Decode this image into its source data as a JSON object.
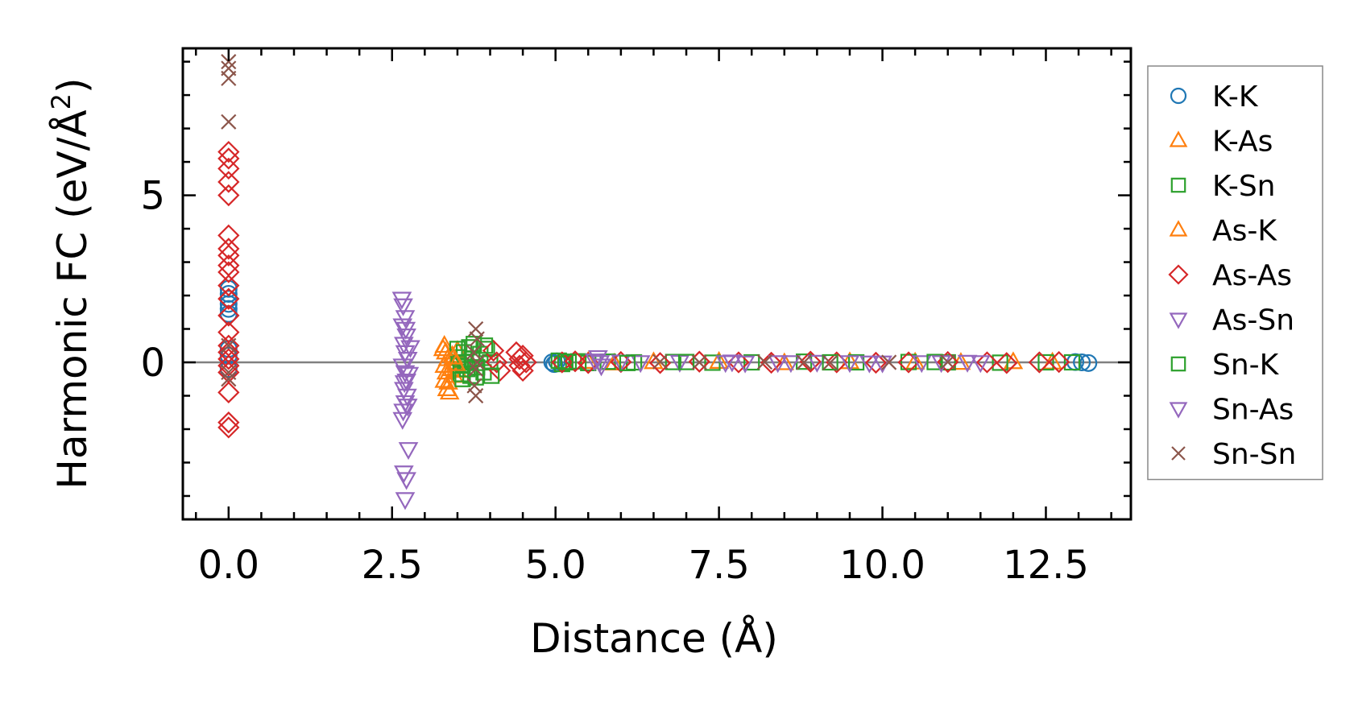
{
  "chart_data": {
    "type": "scatter",
    "title": "",
    "xlabel": "Distance (Å)",
    "ylabel_main": "Harmonic FC (eV/Å",
    "ylabel_sup": "2",
    "ylabel_close": ")",
    "xlim": [
      -0.7,
      13.8
    ],
    "ylim": [
      -4.7,
      9.4
    ],
    "xticks_major": [
      0.0,
      2.5,
      5.0,
      7.5,
      10.0,
      12.5
    ],
    "xtick_labels": [
      "0.0",
      "2.5",
      "5.0",
      "7.5",
      "10.0",
      "12.5"
    ],
    "yticks_major": [
      0,
      5
    ],
    "ytick_labels": [
      "0",
      "5"
    ],
    "zero_line": true,
    "grid": false,
    "legend_position": "outside-right",
    "series": [
      {
        "name": "K-K",
        "marker": "circle",
        "color": "#1f77b4",
        "points": [
          [
            0,
            2.2
          ],
          [
            0,
            2.05
          ],
          [
            0,
            1.9
          ],
          [
            0,
            1.75
          ],
          [
            0,
            1.6
          ],
          [
            0,
            1.45
          ],
          [
            0,
            0.4
          ],
          [
            0,
            0.2
          ],
          [
            0,
            -0.2
          ],
          [
            13.05,
            0.0
          ],
          [
            13.15,
            -0.02
          ],
          [
            12.95,
            0.01
          ],
          [
            4.95,
            0.0
          ],
          [
            4.98,
            -0.05
          ],
          [
            5.02,
            0.03
          ]
        ]
      },
      {
        "name": "K-As",
        "marker": "triangle-up",
        "color": "#ff7f0e",
        "points": [
          [
            3.3,
            0.5
          ],
          [
            3.32,
            0.3
          ],
          [
            3.35,
            0.1
          ],
          [
            3.3,
            -0.1
          ],
          [
            3.33,
            -0.3
          ],
          [
            3.3,
            -0.55
          ],
          [
            3.34,
            -0.8
          ],
          [
            3.38,
            -0.9
          ],
          [
            3.4,
            -0.2
          ],
          [
            3.42,
            0.2
          ],
          [
            3.45,
            0.0
          ],
          [
            3.45,
            -0.4
          ],
          [
            3.5,
            0.35
          ],
          [
            3.5,
            -0.25
          ],
          [
            5.5,
            0.02
          ],
          [
            5.9,
            -0.03
          ],
          [
            6.5,
            0.01
          ],
          [
            7.5,
            0.02
          ],
          [
            8.5,
            -0.02
          ],
          [
            9.5,
            0.01
          ],
          [
            10.5,
            0.0
          ],
          [
            11.2,
            -0.01
          ],
          [
            12.0,
            0.01
          ],
          [
            12.6,
            0.0
          ]
        ]
      },
      {
        "name": "K-Sn",
        "marker": "square",
        "color": "#2ca02c",
        "points": [
          [
            3.5,
            0.4
          ],
          [
            3.52,
            0.15
          ],
          [
            3.55,
            -0.1
          ],
          [
            3.55,
            -0.35
          ],
          [
            3.6,
            0.3
          ],
          [
            3.62,
            0.0
          ],
          [
            3.65,
            -0.2
          ],
          [
            3.68,
            0.45
          ],
          [
            3.7,
            -0.4
          ],
          [
            3.72,
            0.1
          ],
          [
            3.75,
            0.55
          ],
          [
            3.8,
            -0.15
          ],
          [
            3.85,
            0.25
          ],
          [
            3.9,
            -0.3
          ],
          [
            3.95,
            0.4
          ],
          [
            4.0,
            0.0
          ],
          [
            5.05,
            0.05
          ],
          [
            5.1,
            -0.05
          ],
          [
            5.2,
            0.0
          ],
          [
            5.35,
            0.03
          ],
          [
            5.5,
            -0.02
          ],
          [
            5.8,
            0.02
          ],
          [
            6.2,
            0.0
          ],
          [
            6.8,
            0.01
          ],
          [
            7.4,
            -0.01
          ],
          [
            8.0,
            0.0
          ],
          [
            8.8,
            0.02
          ],
          [
            9.6,
            0.0
          ],
          [
            10.4,
            0.01
          ],
          [
            11.0,
            0.0
          ],
          [
            11.8,
            -0.01
          ],
          [
            12.5,
            0.0
          ],
          [
            12.9,
            0.0
          ]
        ]
      },
      {
        "name": "As-K",
        "marker": "triangle-up",
        "color": "#ff7f0e",
        "points": [
          [
            3.28,
            0.4
          ],
          [
            3.36,
            -0.6
          ],
          [
            3.44,
            0.15
          ],
          [
            3.48,
            -0.05
          ]
        ]
      },
      {
        "name": "As-As",
        "marker": "diamond",
        "color": "#d62728",
        "points": [
          [
            0,
            6.3
          ],
          [
            0,
            6.1
          ],
          [
            0,
            5.8
          ],
          [
            0,
            5.4
          ],
          [
            0,
            5.0
          ],
          [
            0,
            3.8
          ],
          [
            0,
            3.4
          ],
          [
            0,
            3.2
          ],
          [
            0,
            2.9
          ],
          [
            0,
            2.7
          ],
          [
            0,
            2.3
          ],
          [
            0,
            1.9
          ],
          [
            0,
            1.4
          ],
          [
            0,
            0.9
          ],
          [
            0,
            0.5
          ],
          [
            0,
            0.3
          ],
          [
            0,
            0.1
          ],
          [
            0,
            -0.1
          ],
          [
            0,
            -0.3
          ],
          [
            0,
            -0.9
          ],
          [
            0,
            -1.8
          ],
          [
            0,
            -1.95
          ],
          [
            4.05,
            0.35
          ],
          [
            4.1,
            0.0
          ],
          [
            4.15,
            -0.25
          ],
          [
            4.4,
            0.3
          ],
          [
            4.45,
            0.1
          ],
          [
            4.45,
            -0.1
          ],
          [
            4.5,
            -0.25
          ],
          [
            4.5,
            0.2
          ],
          [
            4.55,
            0.0
          ],
          [
            5.1,
            0.0
          ],
          [
            5.3,
            0.03
          ],
          [
            5.5,
            -0.02
          ],
          [
            6.0,
            0.01
          ],
          [
            6.6,
            -0.02
          ],
          [
            7.2,
            0.02
          ],
          [
            7.8,
            0.0
          ],
          [
            8.3,
            -0.01
          ],
          [
            8.9,
            0.02
          ],
          [
            9.3,
            0.0
          ],
          [
            9.9,
            -0.01
          ],
          [
            10.4,
            0.0
          ],
          [
            11.0,
            0.01
          ],
          [
            11.6,
            0.0
          ],
          [
            11.9,
            -0.02
          ],
          [
            12.4,
            0.0
          ],
          [
            12.7,
            0.01
          ]
        ]
      },
      {
        "name": "As-Sn",
        "marker": "triangle-down",
        "color": "#9467bd",
        "points": [
          [
            2.65,
            1.9
          ],
          [
            2.67,
            1.7
          ],
          [
            2.7,
            1.35
          ],
          [
            2.66,
            1.1
          ],
          [
            2.72,
            0.8
          ],
          [
            2.68,
            0.55
          ],
          [
            2.7,
            0.3
          ],
          [
            2.74,
            0.1
          ],
          [
            2.66,
            -0.1
          ],
          [
            2.7,
            -0.3
          ],
          [
            2.72,
            -0.55
          ],
          [
            2.68,
            -0.8
          ],
          [
            2.73,
            -1.0
          ],
          [
            2.7,
            -1.2
          ],
          [
            2.67,
            -1.45
          ],
          [
            2.66,
            -1.7
          ],
          [
            2.75,
            -2.6
          ],
          [
            2.68,
            -3.3
          ],
          [
            2.72,
            -3.5
          ],
          [
            2.7,
            -4.1
          ],
          [
            2.78,
            0.45
          ],
          [
            2.76,
            -0.35
          ],
          [
            5.65,
            0.15
          ],
          [
            5.68,
            0.0
          ],
          [
            5.7,
            -0.1
          ],
          [
            6.0,
            0.02
          ],
          [
            6.3,
            0.0
          ],
          [
            6.9,
            0.01
          ],
          [
            7.6,
            0.0
          ],
          [
            7.9,
            -0.01
          ],
          [
            8.4,
            0.0
          ],
          [
            9.0,
            0.01
          ],
          [
            9.5,
            0.0
          ],
          [
            10.0,
            -0.01
          ],
          [
            10.6,
            0.0
          ],
          [
            11.3,
            0.01
          ],
          [
            11.5,
            0.0
          ]
        ]
      },
      {
        "name": "Sn-K",
        "marker": "square",
        "color": "#2ca02c",
        "points": [
          [
            3.58,
            -0.5
          ],
          [
            3.78,
            -0.45
          ],
          [
            3.92,
            0.5
          ],
          [
            4.02,
            -0.4
          ],
          [
            5.15,
            0.02
          ],
          [
            6.1,
            -0.02
          ],
          [
            7.0,
            0.01
          ],
          [
            9.2,
            0.0
          ],
          [
            10.8,
            0.01
          ]
        ]
      },
      {
        "name": "Sn-As",
        "marker": "triangle-down",
        "color": "#9467bd",
        "points": [
          [
            2.71,
            1.0
          ],
          [
            2.69,
            -0.6
          ],
          [
            2.74,
            -1.3
          ],
          [
            5.6,
            0.05
          ],
          [
            7.7,
            0.02
          ],
          [
            8.6,
            0.0
          ],
          [
            9.8,
            -0.01
          ],
          [
            10.9,
            0.0
          ]
        ]
      },
      {
        "name": "Sn-Sn",
        "marker": "cross",
        "color": "#8c564b",
        "points": [
          [
            0,
            9.0
          ],
          [
            0,
            8.8
          ],
          [
            0,
            8.5
          ],
          [
            0,
            7.2
          ],
          [
            0,
            0.5
          ],
          [
            0,
            -0.3
          ],
          [
            0,
            -0.5
          ],
          [
            3.78,
            1.0
          ],
          [
            3.8,
            0.7
          ],
          [
            3.75,
            0.3
          ],
          [
            3.8,
            0.0
          ],
          [
            3.78,
            -0.2
          ],
          [
            3.76,
            -0.7
          ],
          [
            3.78,
            -1.0
          ],
          [
            6.6,
            0.02
          ],
          [
            7.2,
            0.0
          ],
          [
            8.2,
            0.01
          ],
          [
            8.8,
            0.0
          ],
          [
            9.2,
            -0.01
          ],
          [
            10.1,
            0.0
          ],
          [
            11.0,
            0.01
          ]
        ]
      }
    ]
  }
}
